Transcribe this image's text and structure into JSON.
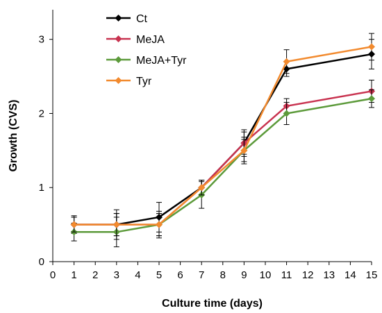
{
  "chart_data": {
    "type": "line",
    "xlabel": "Culture time (days)",
    "ylabel": "Growth (CVS)",
    "xlim": [
      0,
      15
    ],
    "ylim": [
      0,
      3.4
    ],
    "xticks": [
      0,
      1,
      2,
      3,
      4,
      5,
      6,
      7,
      8,
      9,
      10,
      11,
      12,
      13,
      14,
      15
    ],
    "yticks": [
      0,
      1,
      2,
      3
    ],
    "grid": false,
    "legend_position": "top-left",
    "x": [
      1,
      3,
      5,
      7,
      9,
      11,
      15
    ],
    "series": [
      {
        "name": "Ct",
        "color": "#000000",
        "marker": "diamond",
        "values": [
          0.5,
          0.5,
          0.6,
          1.0,
          1.6,
          2.6,
          2.8
        ],
        "errors": [
          0.12,
          0.2,
          0.2,
          0.1,
          0.15,
          0.1,
          0.2
        ]
      },
      {
        "name": "MeJA",
        "color": "#c8324f",
        "marker": "diamond",
        "values": [
          0.5,
          0.5,
          0.5,
          1.0,
          1.6,
          2.1,
          2.3
        ],
        "errors": [
          0.1,
          0.15,
          0.15,
          0.1,
          0.18,
          0.1,
          0.15
        ]
      },
      {
        "name": "MeJA+Tyr",
        "color": "#5c9a3a",
        "marker": "diamond",
        "values": [
          0.4,
          0.4,
          0.5,
          0.9,
          1.5,
          2.0,
          2.2
        ],
        "errors": [
          0.12,
          0.2,
          0.18,
          0.18,
          0.18,
          0.15,
          0.12
        ]
      },
      {
        "name": "Tyr",
        "color": "#f28a2e",
        "marker": "diamond",
        "values": [
          0.5,
          0.5,
          0.5,
          1.0,
          1.5,
          2.7,
          2.9
        ],
        "errors": [
          0.1,
          0.15,
          0.15,
          0.1,
          0.15,
          0.16,
          0.18
        ]
      }
    ]
  }
}
